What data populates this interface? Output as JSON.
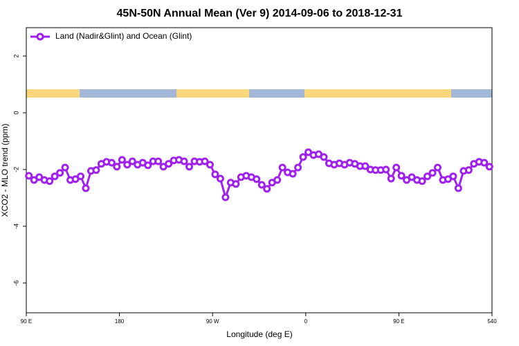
{
  "chart_data": {
    "type": "line",
    "title": "45N-50N Annual Mean (Ver 9)   2014-09-06 to 2018-12-31",
    "x_label": "Longitude (deg E)",
    "y_label": "XCO2 - MLO trend (ppm)",
    "x": [
      92.5,
      97.5,
      102.5,
      107.5,
      112.5,
      117.5,
      122.5,
      127.5,
      132.5,
      137.5,
      142.5,
      147.5,
      152.5,
      157.5,
      162.5,
      167.5,
      172.5,
      177.5,
      182.5,
      187.5,
      192.5,
      197.5,
      202.5,
      207.5,
      212.5,
      217.5,
      222.5,
      227.5,
      232.5,
      237.5,
      242.5,
      247.5,
      252.5,
      257.5,
      262.5,
      267.5,
      272.5,
      277.5,
      282.5,
      287.5,
      292.5,
      297.5,
      302.5,
      307.5,
      312.5,
      317.5,
      322.5,
      327.5,
      332.5,
      337.5,
      342.5,
      347.5,
      352.5,
      357.5,
      362.5,
      367.5,
      372.5,
      377.5,
      382.5,
      387.5,
      392.5,
      397.5,
      402.5,
      407.5,
      412.5,
      417.5,
      422.5,
      427.5,
      432.5,
      437.5,
      442.5,
      447.5,
      452.5,
      457.5,
      462.5,
      467.5,
      472.5,
      477.5,
      482.5,
      487.5,
      492.5,
      497.5,
      502.5,
      507.5,
      512.5,
      517.5,
      522.5,
      527.5,
      532.5,
      537.5
    ],
    "series": [
      {
        "name": "Land (Nadir&Glint) and Ocean (Glint)",
        "color": "#a020f0",
        "values": [
          -2.22,
          -2.37,
          -2.27,
          -2.37,
          -2.41,
          -2.24,
          -2.12,
          -1.93,
          -2.37,
          -2.34,
          -2.24,
          -2.66,
          -2.05,
          -2.02,
          -1.8,
          -1.73,
          -1.76,
          -1.9,
          -1.66,
          -1.83,
          -1.71,
          -1.83,
          -1.76,
          -1.85,
          -1.71,
          -1.71,
          -1.9,
          -1.8,
          -1.68,
          -1.66,
          -1.71,
          -1.9,
          -1.71,
          -1.73,
          -1.71,
          -1.83,
          -2.17,
          -2.32,
          -2.98,
          -2.46,
          -2.51,
          -2.27,
          -2.22,
          -2.27,
          -2.34,
          -2.54,
          -2.68,
          -2.46,
          -2.37,
          -1.93,
          -2.1,
          -2.15,
          -1.93,
          -1.56,
          -1.39,
          -1.49,
          -1.46,
          -1.56,
          -1.78,
          -1.83,
          -1.78,
          -1.83,
          -1.76,
          -1.8,
          -1.88,
          -1.88,
          -2.0,
          -2.02,
          -2.02,
          -2.0,
          -2.32,
          -1.93,
          -2.22,
          -2.37,
          -2.27,
          -2.37,
          -2.41,
          -2.24,
          -2.12,
          -1.93,
          -2.37,
          -2.34,
          -2.24,
          -2.66,
          -2.05,
          -2.02,
          -1.8,
          -1.73,
          -1.76,
          -1.9
        ]
      }
    ],
    "xlim": [
      90,
      540
    ],
    "xticks": [
      {
        "value": 90,
        "label": "90 E"
      },
      180,
      {
        "value": 270,
        "label": "90 W"
      },
      {
        "value": 360,
        "label": "0"
      },
      {
        "value": 450,
        "label": "90 E"
      },
      540
    ],
    "ylim": [
      -7.05,
      3.0
    ],
    "yticks": [
      2,
      0,
      -2,
      -4,
      -6
    ],
    "legend": "top-left"
  }
}
